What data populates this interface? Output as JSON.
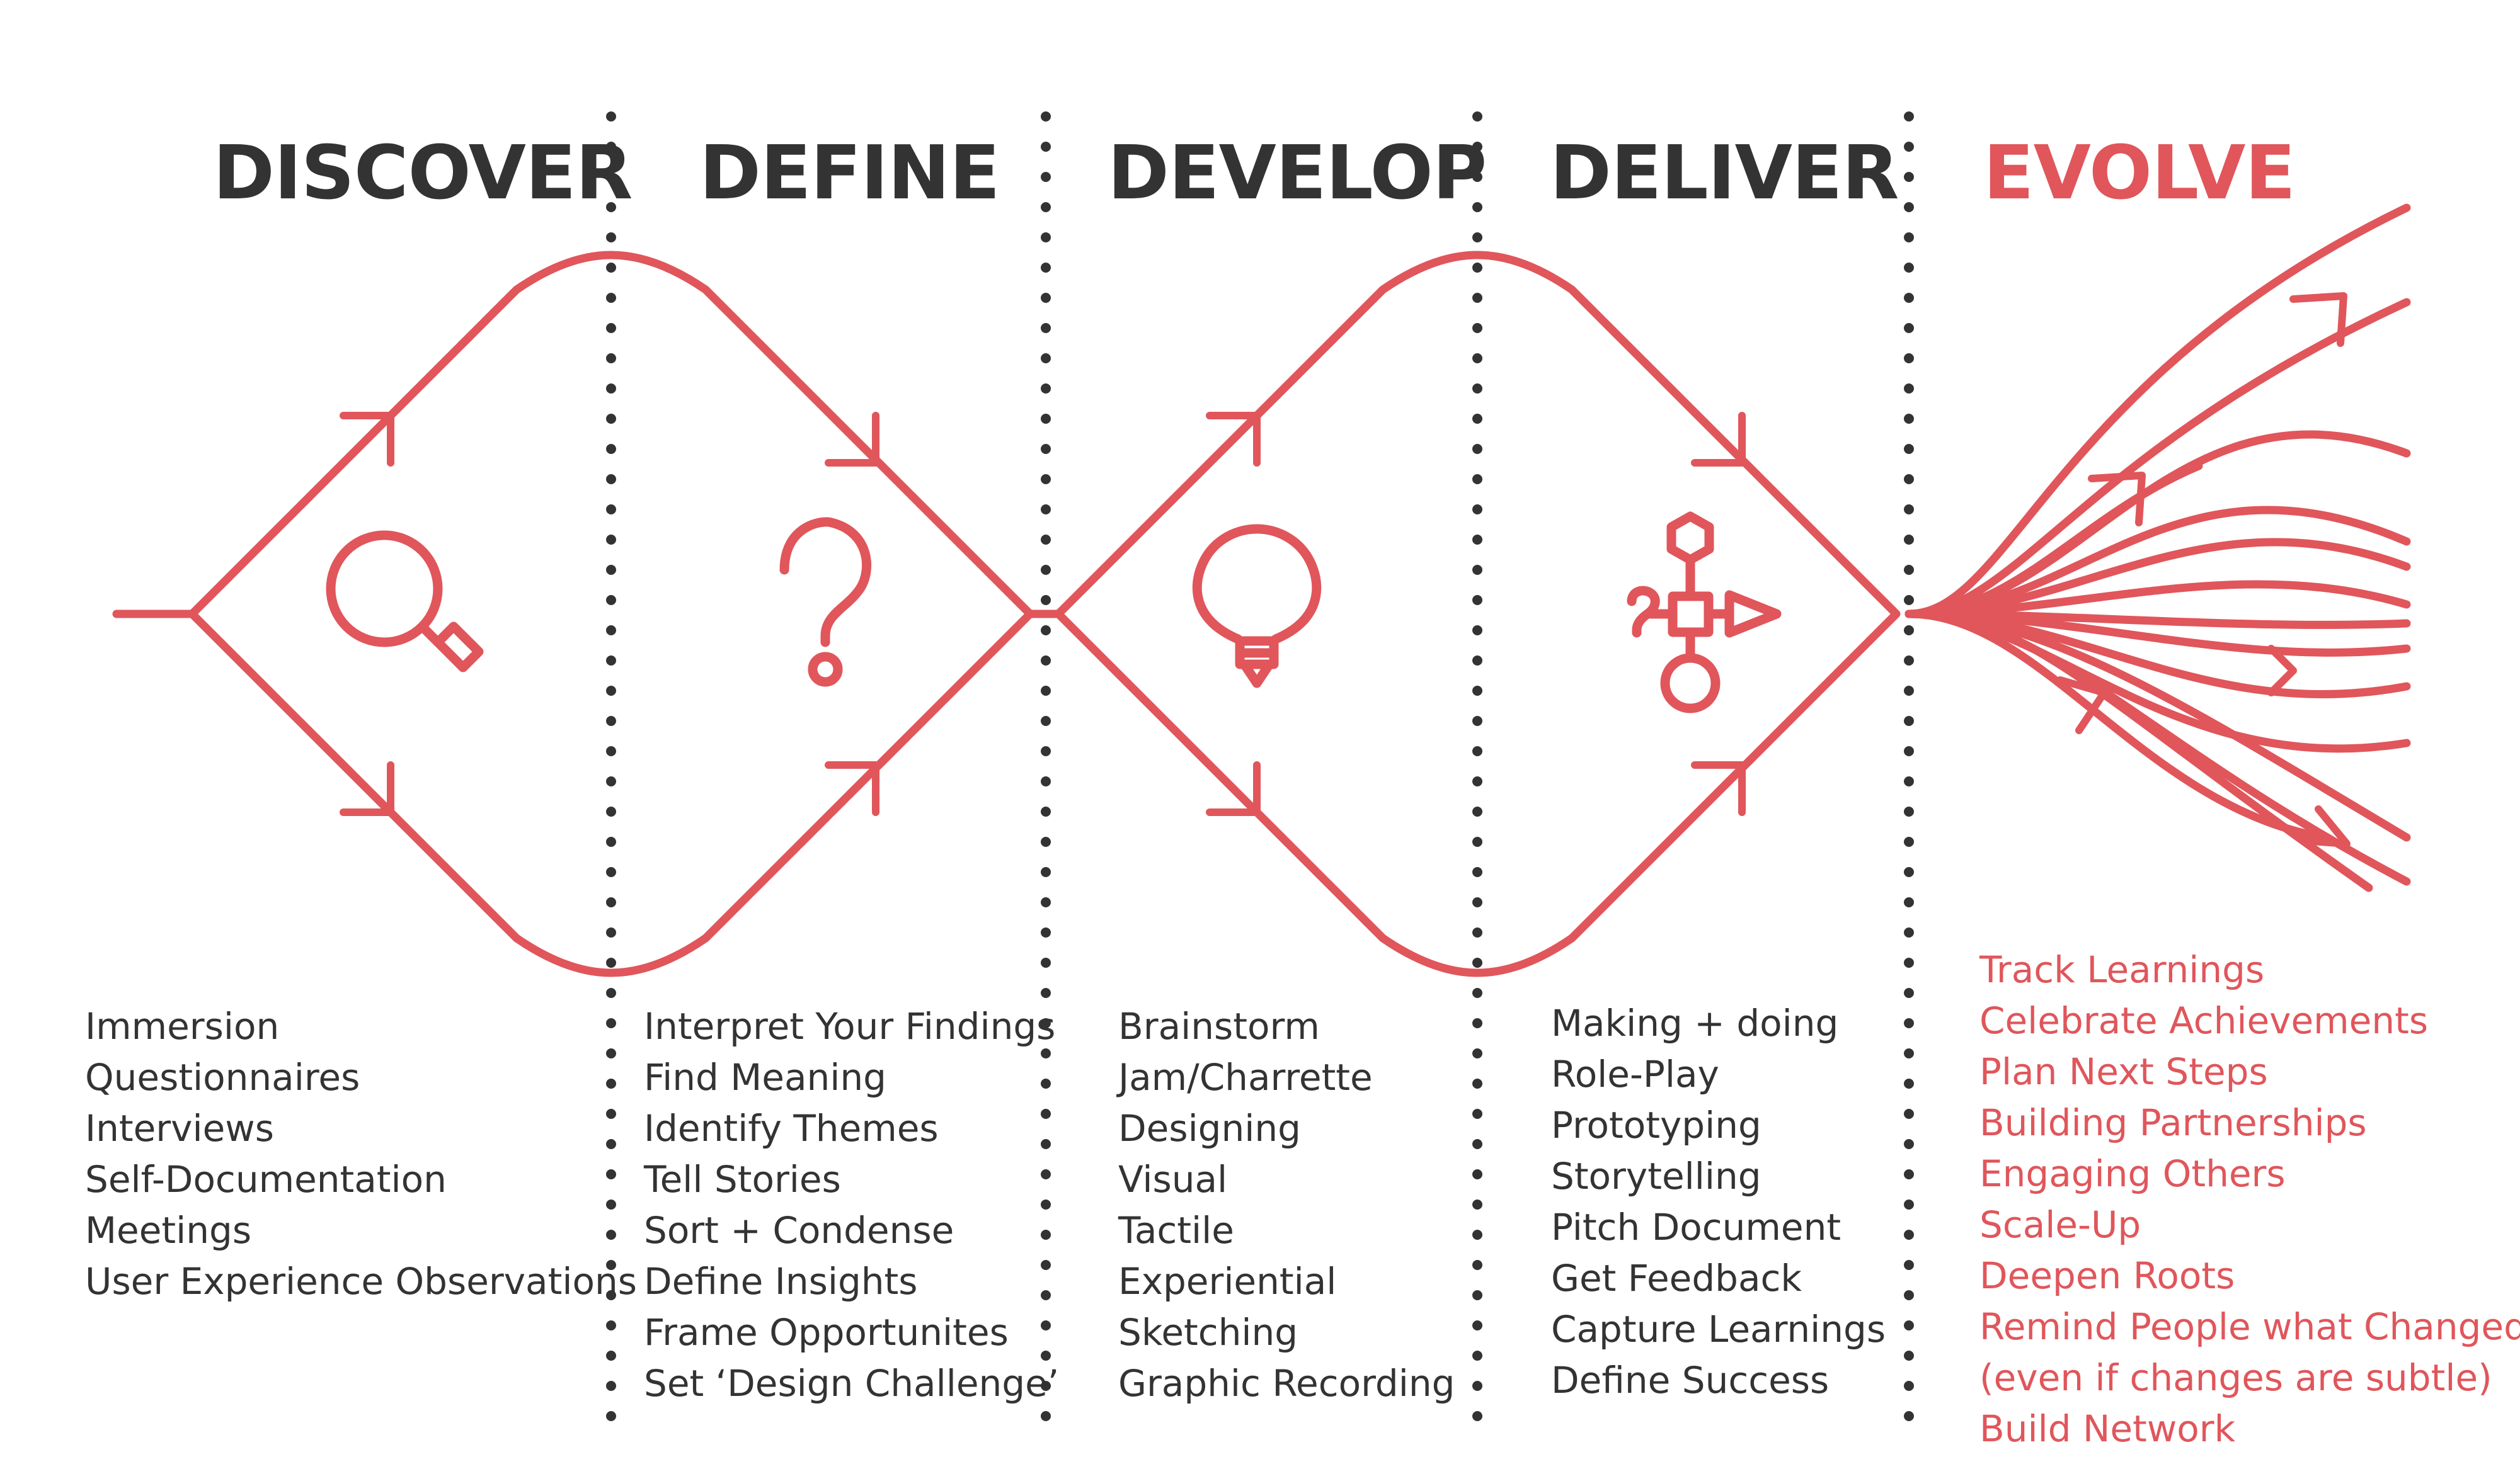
{
  "colors": {
    "accent": "#e0565b",
    "text": "#333333",
    "background": "#ffffff"
  },
  "phases": [
    {
      "title": "DISCOVER",
      "icon": "magnifier-icon",
      "items": [
        "Immersion",
        "Questionnaires",
        "Interviews",
        "Self-Documentation",
        "Meetings",
        "User Experience Observations"
      ]
    },
    {
      "title": "DEFINE",
      "icon": "question-mark-icon",
      "items": [
        "Interpret Your Findings",
        "Find Meaning",
        "Identify Themes",
        "Tell Stories",
        "Sort + Condense",
        "Define Insights",
        "Frame Opportunites",
        "Set ‘Design Challenge’"
      ]
    },
    {
      "title": "DEVELOP",
      "icon": "lightbulb-icon",
      "items": [
        "Brainstorm",
        "Jam/Charrette",
        "Designing",
        "Visual",
        "Tactile",
        "Experiential",
        "Sketching",
        "Graphic Recording"
      ]
    },
    {
      "title": "DELIVER",
      "icon": "process-flow-icon",
      "items": [
        "Making + doing",
        "Role-Play",
        "Prototyping",
        "Storytelling",
        "Pitch Document",
        "Get Feedback",
        "Capture Learnings",
        "Define Success"
      ]
    },
    {
      "title": "EVOLVE",
      "icon": "branching-lines-icon",
      "items": [
        "Track Learnings",
        "Celebrate Achievements",
        "Plan Next Steps",
        "Building Partnerships",
        "Engaging Others",
        "Scale-Up",
        "Deepen Roots",
        "Remind People what Changed",
        "(even if changes are subtle)",
        "Build Network"
      ]
    }
  ]
}
